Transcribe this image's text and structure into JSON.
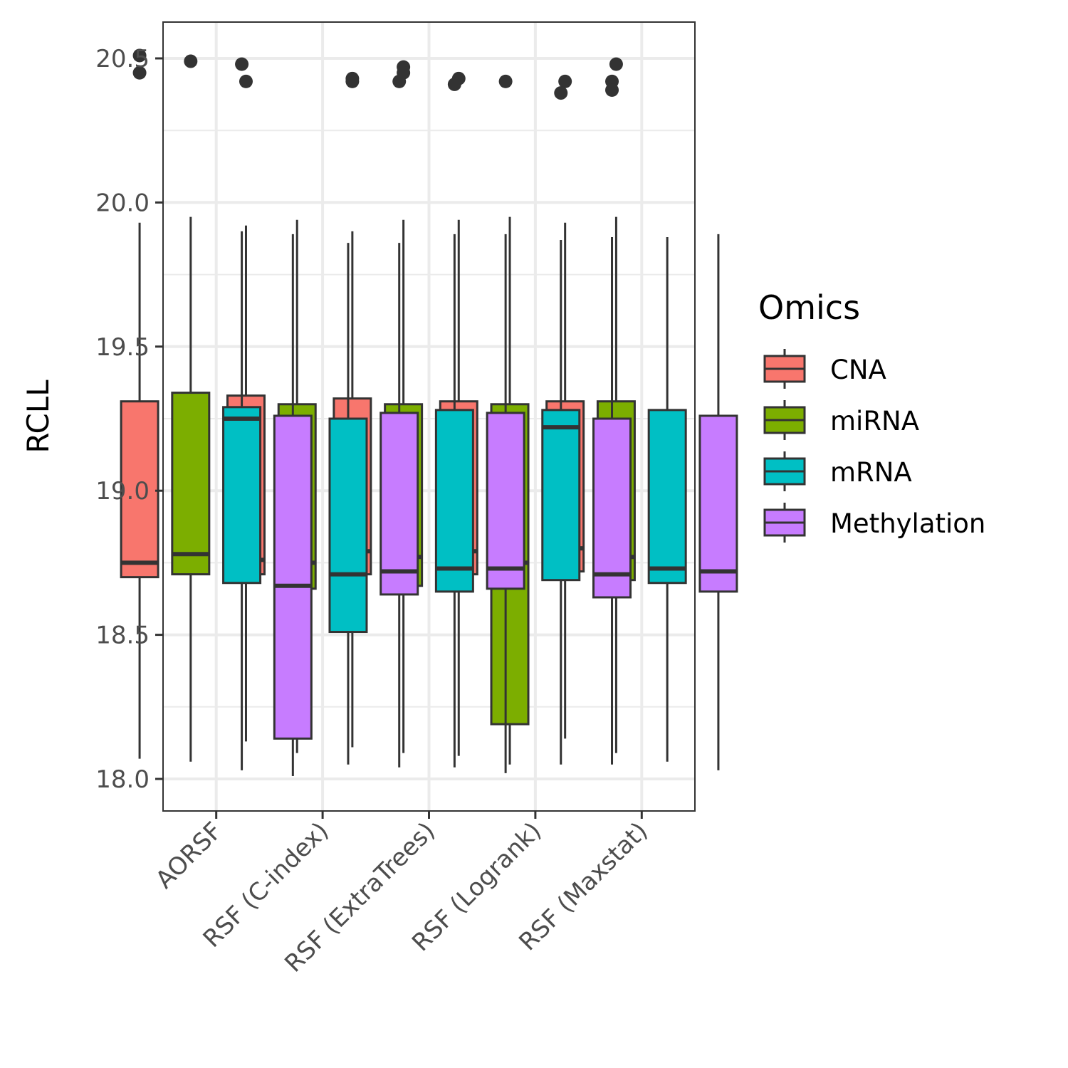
{
  "chart_data": {
    "type": "boxplot",
    "title": "",
    "xlabel": "",
    "ylabel": "RCLL",
    "ylim": [
      17.9,
      20.63
    ],
    "yticks": [
      18.0,
      18.5,
      19.0,
      19.5,
      20.0,
      20.5
    ],
    "ytick_labels": [
      "18.0",
      "18.5",
      "19.0",
      "19.5",
      "20.0",
      "20.5"
    ],
    "grid": true,
    "legend_position": "right",
    "legend_title": "Omics",
    "categories": [
      "AORSF",
      "RSF (C-index)",
      "RSF (ExtraTrees)",
      "RSF (Logrank)",
      "RSF (Maxstat)"
    ],
    "series": [
      {
        "name": "CNA",
        "color": "#F8766D",
        "boxes": [
          {
            "whisker_low": 18.07,
            "q1": 18.7,
            "median": 18.75,
            "q3": 19.31,
            "whisker_high": 19.93,
            "outliers": [
              20.51,
              20.45
            ]
          },
          {
            "whisker_low": 18.13,
            "q1": 18.71,
            "median": 18.76,
            "q3": 19.33,
            "whisker_high": 19.92,
            "outliers": [
              20.42
            ]
          },
          {
            "whisker_low": 18.11,
            "q1": 18.71,
            "median": 18.79,
            "q3": 19.32,
            "whisker_high": 19.9,
            "outliers": [
              20.43,
              20.42
            ]
          },
          {
            "whisker_low": 18.08,
            "q1": 18.71,
            "median": 18.79,
            "q3": 19.31,
            "whisker_high": 19.94,
            "outliers": [
              20.43
            ]
          },
          {
            "whisker_low": 18.14,
            "q1": 18.72,
            "median": 18.8,
            "q3": 19.31,
            "whisker_high": 19.93,
            "outliers": [
              20.42
            ]
          }
        ]
      },
      {
        "name": "miRNA",
        "color": "#7CAE00",
        "boxes": [
          {
            "whisker_low": 18.06,
            "q1": 18.71,
            "median": 18.78,
            "q3": 19.34,
            "whisker_high": 19.95,
            "outliers": [
              20.49
            ]
          },
          {
            "whisker_low": 18.09,
            "q1": 18.66,
            "median": 18.75,
            "q3": 19.3,
            "whisker_high": 19.94,
            "outliers": []
          },
          {
            "whisker_low": 18.09,
            "q1": 18.67,
            "median": 18.77,
            "q3": 19.3,
            "whisker_high": 19.94,
            "outliers": [
              20.47,
              20.45
            ]
          },
          {
            "whisker_low": 18.05,
            "q1": 18.19,
            "median": 18.75,
            "q3": 19.3,
            "whisker_high": 19.95,
            "outliers": []
          },
          {
            "whisker_low": 18.09,
            "q1": 18.69,
            "median": 18.77,
            "q3": 19.31,
            "whisker_high": 19.95,
            "outliers": [
              20.48
            ]
          }
        ]
      },
      {
        "name": "mRNA",
        "color": "#00BFC4",
        "boxes": [
          {
            "whisker_low": 18.03,
            "q1": 18.68,
            "median": 19.25,
            "q3": 19.29,
            "whisker_high": 19.9,
            "outliers": [
              20.48
            ]
          },
          {
            "whisker_low": 18.05,
            "q1": 18.51,
            "median": 18.71,
            "q3": 19.25,
            "whisker_high": 19.86,
            "outliers": []
          },
          {
            "whisker_low": 18.04,
            "q1": 18.65,
            "median": 18.73,
            "q3": 19.28,
            "whisker_high": 19.89,
            "outliers": [
              20.41
            ]
          },
          {
            "whisker_low": 18.05,
            "q1": 18.69,
            "median": 19.22,
            "q3": 19.28,
            "whisker_high": 19.87,
            "outliers": [
              20.38
            ]
          },
          {
            "whisker_low": 18.06,
            "q1": 18.68,
            "median": 18.73,
            "q3": 19.28,
            "whisker_high": 19.88,
            "outliers": []
          }
        ]
      },
      {
        "name": "Methylation",
        "color": "#C77CFF",
        "boxes": [
          {
            "whisker_low": 18.01,
            "q1": 18.14,
            "median": 18.67,
            "q3": 19.26,
            "whisker_high": 19.89,
            "outliers": []
          },
          {
            "whisker_low": 18.04,
            "q1": 18.64,
            "median": 18.72,
            "q3": 19.27,
            "whisker_high": 19.86,
            "outliers": [
              20.42
            ]
          },
          {
            "whisker_low": 18.02,
            "q1": 18.66,
            "median": 18.73,
            "q3": 19.27,
            "whisker_high": 19.89,
            "outliers": [
              20.42
            ]
          },
          {
            "whisker_low": 18.05,
            "q1": 18.63,
            "median": 18.71,
            "q3": 19.25,
            "whisker_high": 19.88,
            "outliers": [
              20.42,
              20.39
            ]
          },
          {
            "whisker_low": 18.03,
            "q1": 18.65,
            "median": 18.72,
            "q3": 19.26,
            "whisker_high": 19.89,
            "outliers": []
          }
        ]
      }
    ]
  }
}
